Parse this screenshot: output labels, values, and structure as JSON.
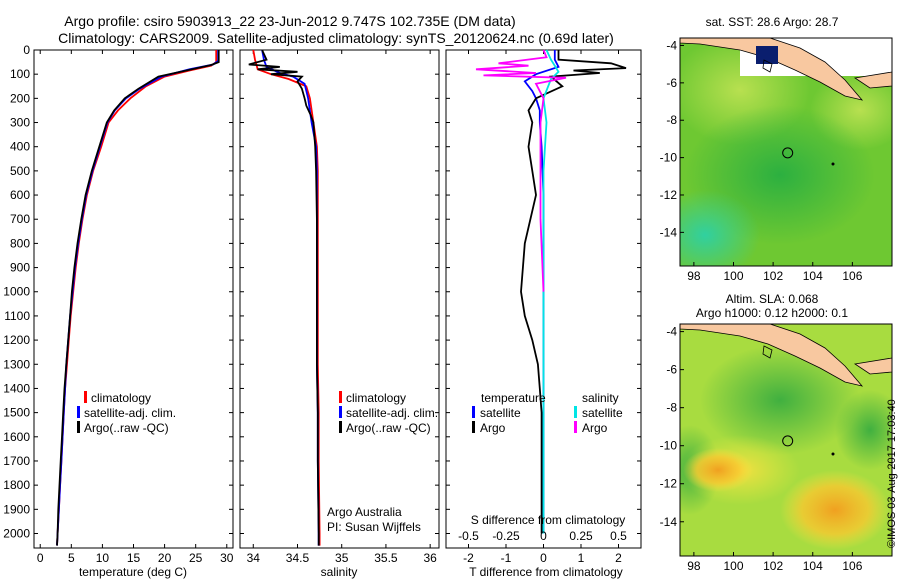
{
  "header": {
    "line1": "Argo profile: csiro 5903913_22 23-Jun-2012 9.747S 102.735E (DM data)",
    "line2": "Climatology: CARS2009. Satellite-adjusted climatology: synTS_20120624.nc (0.69d later)"
  },
  "side_label": "©IMOS 03-Aug-2017 17:03:40",
  "attribution": {
    "line1": "Argo Australia",
    "line2": "PI: Susan Wijffels"
  },
  "colors": {
    "climatology": "#ff0000",
    "satellite": "#0000ff",
    "argo": "#000000",
    "sat_diff": "#0000ff",
    "salinity_sat": "#00e5e5",
    "salinity_argo": "#ff00ff",
    "land": "#f8c8a0"
  },
  "chart_data": [
    {
      "type": "line",
      "id": "temperature",
      "xlabel": "temperature (deg C)",
      "ylabel": "",
      "xlim": [
        -1,
        31
      ],
      "ylim": [
        2060,
        0
      ],
      "x_ticks": [
        0,
        5,
        10,
        15,
        20,
        25,
        30
      ],
      "y_ticks": [
        0,
        100,
        200,
        300,
        400,
        500,
        600,
        700,
        800,
        900,
        1000,
        1100,
        1200,
        1300,
        1400,
        1500,
        1600,
        1700,
        1800,
        1900,
        2000
      ],
      "legend": [
        "climatology",
        "satellite-adj. clim.",
        "Argo(..raw -QC)"
      ],
      "series": [
        {
          "name": "climatology",
          "color": "#ff0000",
          "points": [
            [
              28.3,
              0
            ],
            [
              28.3,
              50
            ],
            [
              27.5,
              65
            ],
            [
              24,
              85
            ],
            [
              20,
              110
            ],
            [
              17,
              150
            ],
            [
              14.5,
              200
            ],
            [
              12.5,
              250
            ],
            [
              11,
              300
            ],
            [
              9.8,
              400
            ],
            [
              8.5,
              500
            ],
            [
              7.5,
              600
            ],
            [
              6.8,
              700
            ],
            [
              6.2,
              800
            ],
            [
              5.7,
              900
            ],
            [
              5.3,
              1000
            ],
            [
              4.9,
              1100
            ],
            [
              4.6,
              1200
            ],
            [
              4.3,
              1300
            ],
            [
              4.0,
              1400
            ],
            [
              3.8,
              1500
            ],
            [
              3.6,
              1600
            ],
            [
              3.4,
              1700
            ],
            [
              3.2,
              1800
            ],
            [
              3.0,
              1900
            ],
            [
              2.8,
              2000
            ],
            [
              2.7,
              2050
            ]
          ]
        },
        {
          "name": "satellite-adj. clim.",
          "color": "#0000ff",
          "points": [
            [
              28.6,
              0
            ],
            [
              28.6,
              45
            ],
            [
              27.8,
              60
            ],
            [
              24,
              80
            ],
            [
              19.5,
              110
            ],
            [
              16,
              160
            ],
            [
              13.8,
              200
            ],
            [
              12,
              250
            ],
            [
              10.8,
              300
            ],
            [
              9.6,
              400
            ],
            [
              8.4,
              500
            ],
            [
              7.4,
              600
            ],
            [
              6.7,
              700
            ],
            [
              6.1,
              800
            ],
            [
              5.6,
              900
            ],
            [
              5.2,
              1000
            ],
            [
              4.8,
              1100
            ],
            [
              4.5,
              1200
            ],
            [
              4.2,
              1300
            ],
            [
              4.0,
              1400
            ],
            [
              3.8,
              1500
            ],
            [
              3.6,
              1600
            ],
            [
              3.4,
              1700
            ],
            [
              3.2,
              1800
            ],
            [
              3.0,
              1900
            ],
            [
              2.8,
              2000
            ],
            [
              2.7,
              2050
            ]
          ]
        },
        {
          "name": "Argo(..raw -QC)",
          "color": "#000000",
          "points": [
            [
              28.7,
              0
            ],
            [
              28.7,
              50
            ],
            [
              27.5,
              62
            ],
            [
              23.5,
              85
            ],
            [
              19,
              110
            ],
            [
              15.8,
              160
            ],
            [
              13.6,
              200
            ],
            [
              11.9,
              250
            ],
            [
              10.7,
              300
            ],
            [
              9.5,
              400
            ],
            [
              8.3,
              500
            ],
            [
              7.3,
              600
            ],
            [
              6.6,
              700
            ],
            [
              6.0,
              800
            ],
            [
              5.5,
              900
            ],
            [
              5.1,
              1000
            ],
            [
              4.8,
              1100
            ],
            [
              4.5,
              1200
            ],
            [
              4.2,
              1300
            ],
            [
              3.9,
              1400
            ],
            [
              3.7,
              1500
            ],
            [
              3.5,
              1600
            ],
            [
              3.3,
              1700
            ],
            [
              3.1,
              1800
            ],
            [
              2.9,
              1900
            ],
            [
              2.8,
              2000
            ],
            [
              2.7,
              2050
            ]
          ]
        }
      ]
    },
    {
      "type": "line",
      "id": "salinity",
      "xlabel": "salinity",
      "xlim": [
        33.85,
        36.1
      ],
      "ylim": [
        2060,
        0
      ],
      "x_ticks": [
        34,
        34.5,
        35,
        35.5,
        36
      ],
      "x_tick_labels": [
        "34",
        "34.5",
        "35",
        "35.5",
        "36"
      ],
      "legend": [
        "climatology",
        "satellite-adj. clim.",
        "Argo(..raw -QC)"
      ],
      "series": [
        {
          "name": "climatology",
          "color": "#ff0000",
          "points": [
            [
              34.0,
              0
            ],
            [
              34.02,
              40
            ],
            [
              34.05,
              80
            ],
            [
              34.2,
              100
            ],
            [
              34.4,
              120
            ],
            [
              34.6,
              150
            ],
            [
              34.64,
              200
            ],
            [
              34.68,
              300
            ],
            [
              34.72,
              400
            ],
            [
              34.73,
              500
            ],
            [
              34.73,
              700
            ],
            [
              34.73,
              1000
            ],
            [
              34.73,
              1300
            ],
            [
              34.74,
              1500
            ],
            [
              34.74,
              1700
            ],
            [
              34.75,
              2000
            ],
            [
              34.75,
              2050
            ]
          ]
        },
        {
          "name": "satellite-adj. clim.",
          "color": "#0000ff",
          "points": [
            [
              34.1,
              0
            ],
            [
              34.12,
              40
            ],
            [
              34.15,
              70
            ],
            [
              34.3,
              95
            ],
            [
              34.45,
              110
            ],
            [
              34.58,
              140
            ],
            [
              34.62,
              200
            ],
            [
              34.66,
              300
            ],
            [
              34.71,
              400
            ],
            [
              34.72,
              500
            ],
            [
              34.72,
              700
            ],
            [
              34.72,
              1000
            ],
            [
              34.72,
              1300
            ],
            [
              34.73,
              1500
            ],
            [
              34.73,
              1700
            ],
            [
              34.74,
              2000
            ],
            [
              34.74,
              2050
            ]
          ]
        },
        {
          "name": "Argo(..raw -QC)",
          "color": "#000000",
          "points": [
            [
              34.1,
              0
            ],
            [
              34.15,
              40
            ],
            [
              33.95,
              60
            ],
            [
              34.3,
              70
            ],
            [
              34.05,
              80
            ],
            [
              34.5,
              90
            ],
            [
              34.2,
              100
            ],
            [
              34.55,
              110
            ],
            [
              34.5,
              130
            ],
            [
              34.55,
              160
            ],
            [
              34.58,
              200
            ],
            [
              34.6,
              230
            ],
            [
              34.65,
              270
            ],
            [
              34.68,
              300
            ],
            [
              34.7,
              400
            ],
            [
              34.71,
              500
            ],
            [
              34.72,
              700
            ],
            [
              34.72,
              1000
            ],
            [
              34.72,
              1300
            ],
            [
              34.73,
              1500
            ],
            [
              34.73,
              1700
            ],
            [
              34.74,
              2000
            ],
            [
              34.74,
              2050
            ]
          ]
        }
      ]
    },
    {
      "type": "line",
      "id": "differences",
      "xlabel": "T difference from climatology",
      "xlabel_top": "S difference from climatology",
      "xlim": [
        -2.6,
        2.6
      ],
      "ylim": [
        2060,
        0
      ],
      "x_ticks": [
        -2,
        -1,
        0,
        1,
        2
      ],
      "s_ticks": [
        -0.5,
        -0.25,
        0,
        0.25,
        0.5
      ],
      "s_tick_labels": [
        "-0.5",
        "-0.25",
        "0",
        "0.25",
        "0.5"
      ],
      "legend_temperature": {
        "title": "temperature",
        "items": [
          "satellite",
          "Argo"
        ]
      },
      "legend_salinity": {
        "title": "salinity",
        "items": [
          "satellite",
          "Argo"
        ]
      },
      "series": [
        {
          "name": "temperature satellite",
          "color": "#0000ff",
          "points": [
            [
              0.3,
              0
            ],
            [
              0.3,
              40
            ],
            [
              0.4,
              70
            ],
            [
              -0.2,
              100
            ],
            [
              -0.5,
              130
            ],
            [
              -0.3,
              170
            ],
            [
              -0.2,
              200
            ],
            [
              -0.1,
              250
            ],
            [
              -0.1,
              300
            ],
            [
              -0.05,
              400
            ],
            [
              0,
              600
            ],
            [
              0,
              1000
            ],
            [
              0,
              1500
            ],
            [
              0,
              2000
            ]
          ]
        },
        {
          "name": "temperature Argo",
          "color": "#000000",
          "points": [
            [
              0.4,
              0
            ],
            [
              0.4,
              40
            ],
            [
              1.8,
              55
            ],
            [
              2.2,
              75
            ],
            [
              0.8,
              85
            ],
            [
              1.5,
              95
            ],
            [
              0.2,
              110
            ],
            [
              0.5,
              150
            ],
            [
              -0.2,
              200
            ],
            [
              -0.4,
              250
            ],
            [
              -0.3,
              300
            ],
            [
              -0.4,
              400
            ],
            [
              -0.3,
              500
            ],
            [
              -0.2,
              600
            ],
            [
              -0.5,
              800
            ],
            [
              -0.6,
              1000
            ],
            [
              -0.5,
              1100
            ],
            [
              -0.3,
              1200
            ],
            [
              -0.15,
              1300
            ],
            [
              -0.1,
              1400
            ],
            [
              -0.05,
              1500
            ],
            [
              -0.05,
              1700
            ],
            [
              -0.05,
              2000
            ]
          ]
        },
        {
          "name": "salinity satellite",
          "color": "#00e5e5",
          "points": [
            [
              0.02,
              0
            ],
            [
              0.05,
              40
            ],
            [
              0.08,
              70
            ],
            [
              0.1,
              90
            ],
            [
              0.05,
              120
            ],
            [
              0.0,
              200
            ],
            [
              0.02,
              300
            ],
            [
              0.0,
              500
            ],
            [
              0,
              1000
            ],
            [
              0,
              1500
            ],
            [
              0,
              2000
            ]
          ]
        },
        {
          "name": "salinity Argo",
          "color": "#ff00ff",
          "points": [
            [
              0.0,
              0
            ],
            [
              0.02,
              30
            ],
            [
              -0.3,
              55
            ],
            [
              -0.1,
              65
            ],
            [
              -0.45,
              80
            ],
            [
              -0.05,
              95
            ],
            [
              -0.4,
              105
            ],
            [
              0.15,
              115
            ],
            [
              -0.05,
              140
            ],
            [
              0.0,
              200
            ],
            [
              -0.02,
              300
            ],
            [
              -0.02,
              500
            ],
            [
              -0.02,
              700
            ],
            [
              0,
              1000
            ]
          ]
        }
      ]
    },
    {
      "type": "heatmap",
      "id": "sst_map",
      "title": "sat. SST: 28.6  Argo: 28.7",
      "xlim": [
        97.3,
        108
      ],
      "ylim": [
        -15.8,
        -3.6
      ],
      "x_ticks": [
        98,
        100,
        102,
        104,
        106
      ],
      "y_ticks": [
        -4,
        -6,
        -8,
        -10,
        -12,
        -14
      ],
      "float_position": [
        102.735,
        -9.747
      ]
    },
    {
      "type": "heatmap",
      "id": "sla_map",
      "title": "Altim. SLA: 0.068",
      "subtitle": "Argo h1000: 0.12  h2000: 0.1",
      "xlim": [
        97.3,
        108
      ],
      "ylim": [
        -15.8,
        -3.6
      ],
      "x_ticks": [
        98,
        100,
        102,
        104,
        106
      ],
      "y_ticks": [
        -4,
        -6,
        -8,
        -10,
        -12,
        -14
      ],
      "float_position": [
        102.735,
        -9.747
      ]
    }
  ]
}
